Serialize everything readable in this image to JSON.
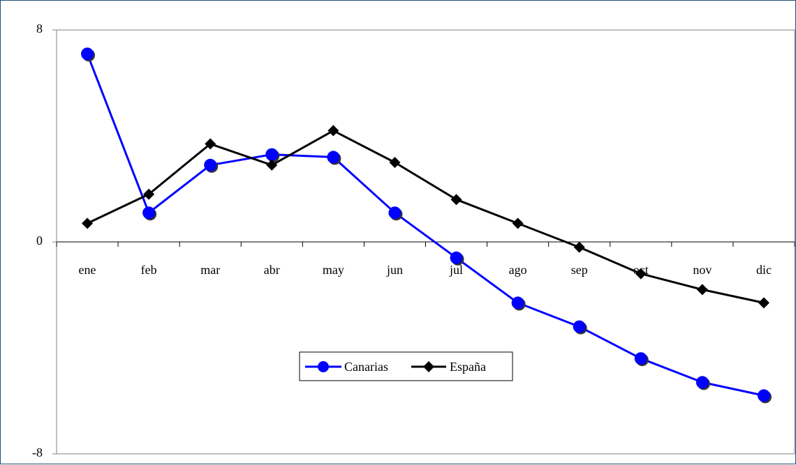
{
  "chart_data": {
    "type": "line",
    "categories": [
      "ene",
      "feb",
      "mar",
      "abr",
      "may",
      "jun",
      "jul",
      "ago",
      "sep",
      "oct",
      "nov",
      "dic"
    ],
    "ylim": [
      -8,
      8
    ],
    "yticks": [
      "8",
      "0",
      "-8"
    ],
    "grid": false,
    "legend": "center",
    "series": [
      {
        "name": "Canarias",
        "color": "#0000ff",
        "marker": "circle",
        "values": [
          7.1,
          1.1,
          2.9,
          3.3,
          3.2,
          1.1,
          -0.6,
          -2.3,
          -3.2,
          -4.4,
          -5.3,
          -5.8
        ]
      },
      {
        "name": "España",
        "color": "#000000",
        "marker": "diamond",
        "values": [
          0.7,
          1.8,
          3.7,
          2.9,
          4.2,
          3.0,
          1.6,
          0.7,
          -0.2,
          -1.2,
          -1.8,
          -2.3
        ]
      }
    ]
  }
}
